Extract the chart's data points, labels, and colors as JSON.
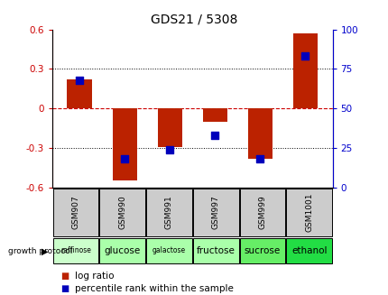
{
  "title": "GDS21 / 5308",
  "samples": [
    "GSM907",
    "GSM990",
    "GSM991",
    "GSM997",
    "GSM999",
    "GSM1001"
  ],
  "protocols": [
    "raffinose",
    "glucose",
    "galactose",
    "fructose",
    "sucrose",
    "ethanol"
  ],
  "log_ratios": [
    0.22,
    -0.55,
    -0.295,
    -0.1,
    -0.38,
    0.57
  ],
  "percentile_ranks": [
    68,
    18,
    24,
    33,
    18,
    83
  ],
  "ylim_left": [
    -0.6,
    0.6
  ],
  "ylim_right": [
    0,
    100
  ],
  "yticks_left": [
    -0.6,
    -0.3,
    0.0,
    0.3,
    0.6
  ],
  "yticks_right": [
    0,
    25,
    50,
    75,
    100
  ],
  "bar_color": "#bb2200",
  "dot_color": "#0000bb",
  "hline_color": "#cc0000",
  "grid_color": "#000000",
  "protocol_colors": [
    "#ccffcc",
    "#aaffaa",
    "#aaffaa",
    "#aaffaa",
    "#66ee66",
    "#22dd44"
  ],
  "sample_bg": "#cccccc",
  "bar_width": 0.55,
  "dot_size": 28,
  "title_color": "#000000",
  "left_label_color": "#cc0000",
  "right_label_color": "#0000cc",
  "legend_log_color": "#bb2200",
  "legend_pct_color": "#0000bb",
  "title_fontsize": 10,
  "tick_fontsize": 7.5,
  "sample_fontsize": 6.5,
  "proto_fontsize": 7.5,
  "legend_fontsize": 7.5
}
